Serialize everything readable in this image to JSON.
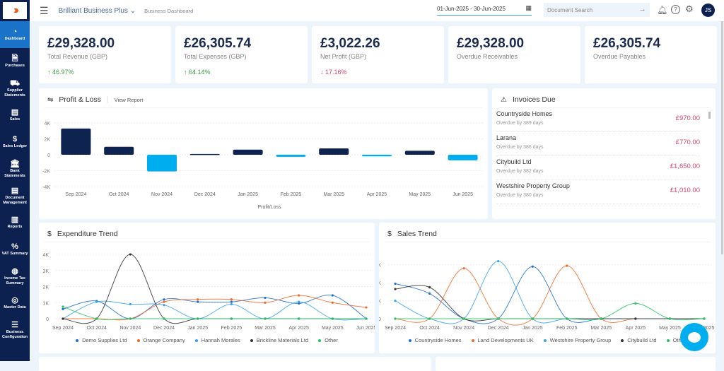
{
  "app": {
    "title": "Brilliant Business Plus",
    "subtitle": "Business Dashboard",
    "date_range": "01-Jun-2025 - 30-Jun-2025",
    "search_placeholder": "Document Search",
    "avatar": "JS"
  },
  "sidebar": [
    {
      "label": "Dashboard",
      "icon": "gauge-icon",
      "active": true
    },
    {
      "label": "Purchases",
      "icon": "purchase-doc-icon"
    },
    {
      "label": "Supplier Statements",
      "icon": "cart-icon"
    },
    {
      "label": "Sales",
      "icon": "sales-icon"
    },
    {
      "label": "Sales Ledger",
      "icon": "ledger-icon"
    },
    {
      "label": "Bank Statements",
      "icon": "bank-icon"
    },
    {
      "label": "Document Management",
      "icon": "document-icon"
    },
    {
      "label": "Reports",
      "icon": "reports-icon"
    },
    {
      "label": "VAT Summary",
      "icon": "percent-icon"
    },
    {
      "label": "Income Tax Summary",
      "icon": "tax-bag-icon"
    },
    {
      "label": "Master Data",
      "icon": "database-icon"
    },
    {
      "label": "Business Configuration",
      "icon": "sliders-icon"
    }
  ],
  "kpis": [
    {
      "value": "£29,328.00",
      "label": "Total Revenue (GBP)",
      "change": "46.97%",
      "dir": "up"
    },
    {
      "value": "£26,305.74",
      "label": "Total Expenses (GBP)",
      "change": "64.14%",
      "dir": "up"
    },
    {
      "value": "£3,022.26",
      "label": "Net Profit (GBP)",
      "change": "17.16%",
      "dir": "down"
    },
    {
      "value": "£29,328.00",
      "label": "Overdue Receivables"
    },
    {
      "value": "£26,305.74",
      "label": "Overdue Payables"
    }
  ],
  "pl": {
    "title": "Profit & Loss",
    "link": "View Report"
  },
  "invoices": {
    "title": "Invoices Due",
    "items": [
      {
        "name": "Countryside Homes",
        "due": "Overdue by 389 days",
        "amount": "£970.00"
      },
      {
        "name": "Larana",
        "due": "Overdue by 386 days",
        "amount": "£770.00"
      },
      {
        "name": "Citybuild Ltd",
        "due": "Overdue by 382 days",
        "amount": "£1,650.00"
      },
      {
        "name": "Westshire Property Group",
        "due": "Overdue by 380 days",
        "amount": "£1,010.00"
      }
    ]
  },
  "exp": {
    "title": "Expenditure Trend"
  },
  "sales": {
    "title": "Sales Trend"
  },
  "colors": {
    "navy": "#0d2150",
    "positive": "#0f2350",
    "negative": "#00aeef",
    "up": "#3a9a4a",
    "down": "#d9436a"
  },
  "chart_data": [
    {
      "type": "bar",
      "xlabel": "Profit/Loss",
      "categories": [
        "Sep 2024",
        "Oct 2024",
        "Nov 2024",
        "Dec 2024",
        "Jan 2025",
        "Feb 2025",
        "Mar 2025",
        "Apr 2025",
        "May 2025",
        "Jun 2025"
      ],
      "values": [
        3300,
        1000,
        -2100,
        100,
        650,
        -250,
        800,
        -200,
        500,
        -700
      ],
      "ylim": [
        -4000,
        4000
      ],
      "yticks": [
        "4K",
        "2K",
        "0",
        "-2K",
        "-4K"
      ],
      "grid": true
    },
    {
      "type": "line",
      "categories": [
        "Sep 2024",
        "Oct 2024",
        "Nov 2024",
        "Dec 2024",
        "Jan 2025",
        "Feb 2025",
        "Mar 2025",
        "Apr 2025",
        "May 2025",
        "Jun 2025"
      ],
      "ylim": [
        0,
        4000
      ],
      "yticks": [
        "4K",
        "3K",
        "2K",
        "1K",
        "0"
      ],
      "legend": "bottom",
      "series": [
        {
          "name": "Demo Supplies Ltd",
          "color": "#1f6fd6",
          "values": [
            600,
            1100,
            0,
            1200,
            1050,
            1050,
            1300,
            950,
            1450,
            0
          ]
        },
        {
          "name": "Orange Company",
          "color": "#f06a28",
          "values": [
            0,
            0,
            0,
            1050,
            1200,
            1200,
            1000,
            1450,
            1000,
            700
          ]
        },
        {
          "name": "Hannah Morales",
          "color": "#3aa3f0",
          "values": [
            0,
            1050,
            900,
            850,
            0,
            900,
            0,
            1050,
            0,
            0
          ]
        },
        {
          "name": "Brickline Materials Ltd",
          "color": "#333333",
          "values": [
            0,
            0,
            4000,
            0,
            0,
            0,
            0,
            0,
            0,
            0
          ]
        },
        {
          "name": "Other",
          "color": "#22c55e",
          "values": [
            750,
            0,
            0,
            0,
            0,
            0,
            0,
            0,
            0,
            0
          ]
        }
      ]
    },
    {
      "type": "line",
      "categories": [
        "Sep 2024",
        "Oct 2024",
        "Nov 2024",
        "Dec 2024",
        "Jan 2025",
        "Feb 2025",
        "Mar 2025",
        "Apr 2025",
        "May 2025",
        "Jun 2025"
      ],
      "ylim": [
        0,
        3500
      ],
      "yticks": [
        "3K",
        "2K",
        "1K",
        "0"
      ],
      "legend": "bottom",
      "series": [
        {
          "name": "Countryside Homes",
          "color": "#1f6fd6",
          "values": [
            1950,
            1400,
            0,
            0,
            2900,
            0,
            0,
            0,
            0,
            0
          ]
        },
        {
          "name": "Land Developments UK",
          "color": "#f06a28",
          "values": [
            0,
            0,
            2800,
            0,
            0,
            2950,
            0,
            0,
            0,
            0
          ]
        },
        {
          "name": "Westshire Property Group",
          "color": "#3aa3f0",
          "values": [
            1000,
            0,
            0,
            3200,
            0,
            0,
            0,
            0,
            0,
            0
          ]
        },
        {
          "name": "Citybuild Ltd",
          "color": "#333333",
          "values": [
            1650,
            1750,
            0,
            0,
            0,
            0,
            0,
            0,
            0,
            0
          ]
        },
        {
          "name": "Other",
          "color": "#22c55e",
          "values": [
            0,
            0,
            0,
            0,
            0,
            0,
            0,
            850,
            0,
            0
          ]
        }
      ]
    }
  ]
}
